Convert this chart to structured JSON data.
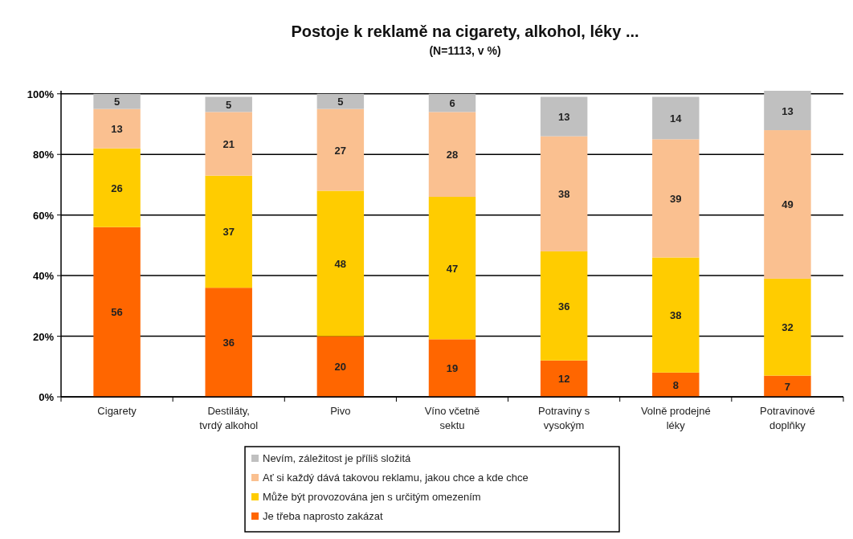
{
  "chart_data": {
    "type": "bar",
    "title": "Postoje k reklamě na cigarety, alkohol, léky ...",
    "subtitle": "(N=1113, v %)",
    "categories": [
      "Cigarety",
      "Destiláty, tvrdý alkohol",
      "Pivo",
      "Víno včetně sektu",
      "Potraviny s vysokým",
      "Volně prodejné léky",
      "Potravinové doplňky"
    ],
    "stacked": true,
    "data_labels": true,
    "grid": "y",
    "legend": "bottom",
    "ylim": [
      0,
      101
    ],
    "yticks": [
      {
        "value": 0,
        "label": "0%"
      },
      {
        "value": 20,
        "label": "20%"
      },
      {
        "value": 40,
        "label": "40%"
      },
      {
        "value": 60,
        "label": "60%"
      },
      {
        "value": 80,
        "label": "80%"
      },
      {
        "value": 100,
        "label": "100%"
      }
    ],
    "series": [
      {
        "name": "Je třeba naprosto zakázat",
        "color": "#ff6600",
        "values": [
          56,
          36,
          20,
          19,
          12,
          8,
          7
        ]
      },
      {
        "name": "Může být provozována jen s určitým omezením",
        "color": "#ffcc00",
        "values": [
          26,
          37,
          48,
          47,
          36,
          38,
          32
        ]
      },
      {
        "name": "Ať si každý dává takovou reklamu, jakou chce a kde chce",
        "color": "#fac090",
        "values": [
          13,
          21,
          27,
          28,
          38,
          39,
          49
        ]
      },
      {
        "name": "Nevím, záležitost je příliš složitá",
        "color": "#c0c0c0",
        "values": [
          5,
          5,
          5,
          6,
          13,
          14,
          13
        ]
      }
    ]
  }
}
